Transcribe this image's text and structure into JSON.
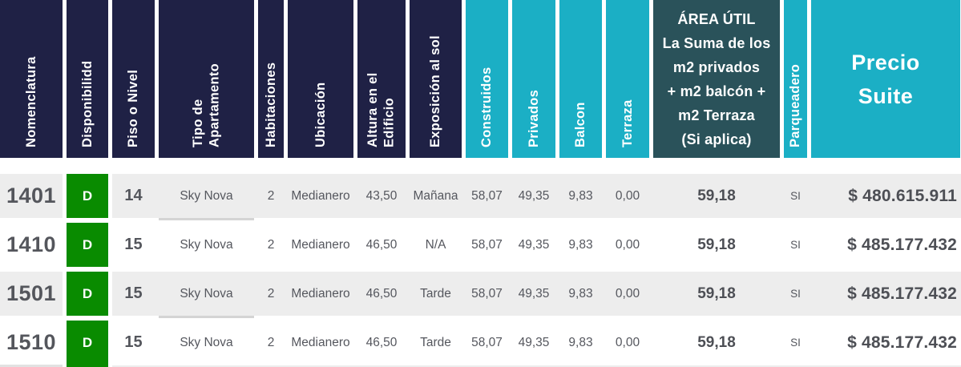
{
  "table": {
    "columns": [
      {
        "id": "nomenclatura",
        "label": "Nomenclatura"
      },
      {
        "id": "disponibilidad",
        "label": "Disponibilidd"
      },
      {
        "id": "piso",
        "label": "Piso o Nivel"
      },
      {
        "id": "tipo",
        "label": "Tipo de\nApartamento"
      },
      {
        "id": "habitaciones",
        "label": "Habitaciones"
      },
      {
        "id": "ubicacion",
        "label": "Ubicación"
      },
      {
        "id": "altura",
        "label": "Altura en el\nEdificio"
      },
      {
        "id": "exposicion",
        "label": "Exposición al sol"
      },
      {
        "id": "construidos",
        "label": "Construidos"
      },
      {
        "id": "privados",
        "label": "Privados"
      },
      {
        "id": "balcon",
        "label": "Balcon"
      },
      {
        "id": "terraza",
        "label": "Terraza"
      },
      {
        "id": "area_util",
        "label": "ÁREA ÚTIL\nLa Suma de los\nm2 privados\n+ m2 balcón +\nm2 Terraza\n(Si aplica)"
      },
      {
        "id": "parqueadero",
        "label": "Parqueadero"
      },
      {
        "id": "precio",
        "label": "Precio\nSuite"
      }
    ],
    "rows": [
      {
        "nomenclatura": "1401",
        "disponibilidad": "D",
        "piso": "14",
        "tipo": "Sky Nova",
        "habitaciones": "2",
        "ubicacion": "Medianero",
        "altura": "43,50",
        "exposicion": "Mañana",
        "construidos": "58,07",
        "privados": "49,35",
        "balcon": "9,83",
        "terraza": "0,00",
        "area_util": "59,18",
        "parqueadero": "SI",
        "precio": "$ 480.615.911"
      },
      {
        "nomenclatura": "1410",
        "disponibilidad": "D",
        "piso": "15",
        "tipo": "Sky Nova",
        "habitaciones": "2",
        "ubicacion": "Medianero",
        "altura": "46,50",
        "exposicion": "N/A",
        "construidos": "58,07",
        "privados": "49,35",
        "balcon": "9,83",
        "terraza": "0,00",
        "area_util": "59,18",
        "parqueadero": "SI",
        "precio": "$ 485.177.432"
      },
      {
        "nomenclatura": "1501",
        "disponibilidad": "D",
        "piso": "15",
        "tipo": "Sky Nova",
        "habitaciones": "2",
        "ubicacion": "Medianero",
        "altura": "46,50",
        "exposicion": "Tarde",
        "construidos": "58,07",
        "privados": "49,35",
        "balcon": "9,83",
        "terraza": "0,00",
        "area_util": "59,18",
        "parqueadero": "SI",
        "precio": "$ 485.177.432"
      },
      {
        "nomenclatura": "1510",
        "disponibilidad": "D",
        "piso": "15",
        "tipo": "Sky Nova",
        "habitaciones": "2",
        "ubicacion": "Medianero",
        "altura": "46,50",
        "exposicion": "Tarde",
        "construidos": "58,07",
        "privados": "49,35",
        "balcon": "9,83",
        "terraza": "0,00",
        "area_util": "59,18",
        "parqueadero": "SI",
        "precio": "$ 485.177.432"
      }
    ],
    "colors": {
      "header_navy": "#1F2145",
      "header_teal": "#1BAFC5",
      "header_dark_teal": "#2A525A",
      "availability_green": "#098B00",
      "row_alt_gray": "#EDEDED",
      "text_gray": "#55575E"
    }
  }
}
